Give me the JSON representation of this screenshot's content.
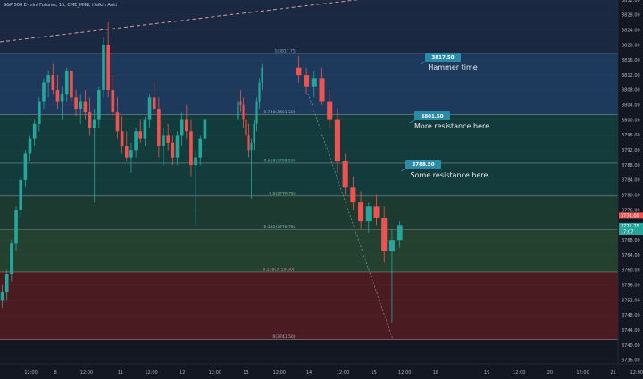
{
  "header": {
    "title": "S&P 500 E-mini Futures, 15, CME_MINI, Heikin Ashi"
  },
  "colors": {
    "background": "#131722",
    "axis_bg": "#131722",
    "up": "#26a69a",
    "down": "#ef5350",
    "tag_bg": "#2a8ba8",
    "trend": "#d79b9b",
    "zone_top": "#1a2842",
    "zone_blue": "#1d3a5c",
    "zone_teal": "#143b3c",
    "zone_green": "#1d3a30",
    "zone_green2": "#24402f",
    "zone_red": "#4a1c22",
    "price_red": "#ef5350",
    "price_green": "#26a69a"
  },
  "chart_data": {
    "type": "candlestick",
    "style": "Heikin Ashi",
    "symbol": "S&P 500 E-mini Futures",
    "interval": "15",
    "exchange": "CME_MINI",
    "ylim": [
      3735,
      3832
    ],
    "y_ticks": [
      "3832.00",
      "3828.00",
      "3824.00",
      "3820.00",
      "3816.00",
      "3812.00",
      "3808.00",
      "3804.00",
      "3800.00",
      "3796.00",
      "3792.00",
      "3788.00",
      "3784.00",
      "3780.00",
      "3776.00",
      "3772.00",
      "3768.00",
      "3764.00",
      "3760.00",
      "3756.00",
      "3752.00",
      "3748.00",
      "3744.00",
      "3740.00",
      "3736.00"
    ],
    "y_tick_values": [
      3832,
      3828,
      3824,
      3820,
      3816,
      3812,
      3808,
      3804,
      3800,
      3796,
      3792,
      3788,
      3784,
      3780,
      3776,
      3772,
      3768,
      3764,
      3760,
      3756,
      3752,
      3748,
      3744,
      3740,
      3736
    ],
    "x_ticks": [
      "12:00",
      "8",
      "12:00",
      "11",
      "12:00",
      "12",
      "12:00",
      "13",
      "12:00",
      "14",
      "12:00",
      "15",
      "12:00",
      "18",
      "19",
      "12:00",
      "20",
      "12:00",
      "21",
      "12:00"
    ],
    "x_tick_fracs": [
      0.05,
      0.09,
      0.14,
      0.195,
      0.245,
      0.295,
      0.348,
      0.398,
      0.452,
      0.5,
      0.555,
      0.605,
      0.655,
      0.705,
      0.788,
      0.84,
      0.89,
      0.943,
      0.992,
      1.03
    ],
    "fib_levels": [
      {
        "ratio": "1",
        "label": "1(3817.75)",
        "price": 3817.75
      },
      {
        "ratio": "0.786",
        "label": "0.786(3801.50)",
        "price": 3801.5
      },
      {
        "ratio": "0.618",
        "label": "0.618(3788.50)",
        "price": 3788.5
      },
      {
        "ratio": "0.5",
        "label": "0.5(3779.75)",
        "price": 3779.75
      },
      {
        "ratio": "0.382",
        "label": "0.382(3770.75)",
        "price": 3770.75
      },
      {
        "ratio": "0.236",
        "label": "0.236(3759.50)",
        "price": 3759.5
      },
      {
        "ratio": "0",
        "label": "0(3741.50)",
        "price": 3741.5
      }
    ],
    "annotations": [
      {
        "tag": "3817.50",
        "text": "Hammer time"
      },
      {
        "tag": "3801.50",
        "text": "More resistance here"
      },
      {
        "tag": "3788.50",
        "text": "Some resistance here"
      }
    ],
    "price_labels": [
      {
        "text": "3774.00",
        "price": 3774.5,
        "color": "red"
      },
      {
        "text": "3771.75",
        "price": 3771.75,
        "color": "green"
      },
      {
        "text": "17:07",
        "price": 3770.2,
        "color": "green"
      }
    ],
    "ohlc": [
      [
        3752,
        3756,
        3750,
        3754
      ],
      [
        3754,
        3760,
        3752,
        3759
      ],
      [
        3759,
        3768,
        3757,
        3767
      ],
      [
        3767,
        3777,
        3765,
        3776
      ],
      [
        3776,
        3785,
        3774,
        3784
      ],
      [
        3784,
        3792,
        3782,
        3791
      ],
      [
        3791,
        3796,
        3789,
        3795
      ],
      [
        3795,
        3800,
        3793,
        3799
      ],
      [
        3799,
        3806,
        3797,
        3805
      ],
      [
        3805,
        3811,
        3803,
        3810
      ],
      [
        3810,
        3813,
        3806,
        3812
      ],
      [
        3812,
        3815,
        3807,
        3808
      ],
      [
        3808,
        3812,
        3803,
        3805
      ],
      [
        3805,
        3809,
        3800,
        3807
      ],
      [
        3807,
        3814,
        3805,
        3813
      ],
      [
        3813,
        3813,
        3805,
        3806
      ],
      [
        3806,
        3808,
        3801,
        3803
      ],
      [
        3803,
        3807,
        3799,
        3805
      ],
      [
        3805,
        3808,
        3800,
        3802
      ],
      [
        3802,
        3806,
        3796,
        3798
      ],
      [
        3798,
        3803,
        3778,
        3800
      ],
      [
        3800,
        3809,
        3798,
        3808
      ],
      [
        3808,
        3822,
        3806,
        3820
      ],
      [
        3820,
        3826,
        3806,
        3808
      ],
      [
        3808,
        3812,
        3800,
        3802
      ],
      [
        3802,
        3806,
        3795,
        3797
      ],
      [
        3797,
        3801,
        3791,
        3793
      ],
      [
        3793,
        3797,
        3789,
        3790
      ],
      [
        3790,
        3794,
        3786,
        3792
      ],
      [
        3792,
        3798,
        3790,
        3797
      ],
      [
        3797,
        3800,
        3794,
        3795
      ],
      [
        3795,
        3801,
        3793,
        3800
      ],
      [
        3800,
        3807,
        3798,
        3806
      ],
      [
        3806,
        3810,
        3801,
        3803
      ],
      [
        3803,
        3806,
        3790,
        3793
      ],
      [
        3793,
        3798,
        3788,
        3796
      ],
      [
        3796,
        3799,
        3792,
        3794
      ],
      [
        3794,
        3796,
        3788,
        3790
      ],
      [
        3790,
        3797,
        3788,
        3796
      ],
      [
        3796,
        3802,
        3793,
        3800
      ],
      [
        3800,
        3804,
        3795,
        3797
      ],
      [
        3797,
        3800,
        3785,
        3788
      ],
      [
        3788,
        3792,
        3772,
        3790
      ],
      [
        3790,
        3796,
        3788,
        3795
      ],
      [
        3795,
        3801,
        3793,
        3800
      ],
      [
        3800,
        3806,
        3798,
        3805
      ],
      [
        3805,
        3808,
        3802,
        3804
      ],
      [
        3804,
        3806,
        3798,
        3800
      ],
      [
        3800,
        3803,
        3794,
        3796
      ],
      [
        3796,
        3799,
        3790,
        3792
      ],
      [
        3792,
        3795,
        3779,
        3794
      ],
      [
        3794,
        3800,
        3792,
        3799
      ],
      [
        3799,
        3806,
        3797,
        3805
      ],
      [
        3805,
        3811,
        3803,
        3810
      ],
      [
        3810,
        3815,
        3808,
        3814
      ],
      [
        3814,
        3817,
        3810,
        3812
      ],
      [
        3812,
        3814,
        3807,
        3809
      ],
      [
        3809,
        3813,
        3806,
        3811
      ],
      [
        3811,
        3814,
        3804,
        3805
      ],
      [
        3805,
        3808,
        3798,
        3800
      ],
      [
        3800,
        3803,
        3786,
        3789
      ],
      [
        3789,
        3791,
        3780,
        3782
      ],
      [
        3782,
        3785,
        3776,
        3778
      ],
      [
        3778,
        3781,
        3771,
        3773
      ],
      [
        3773,
        3778,
        3770,
        3777
      ],
      [
        3777,
        3780,
        3772,
        3774
      ],
      [
        3774,
        3777,
        3762,
        3765
      ],
      [
        3765,
        3771,
        3746,
        3768
      ],
      [
        3768,
        3773,
        3766,
        3772
      ]
    ]
  }
}
